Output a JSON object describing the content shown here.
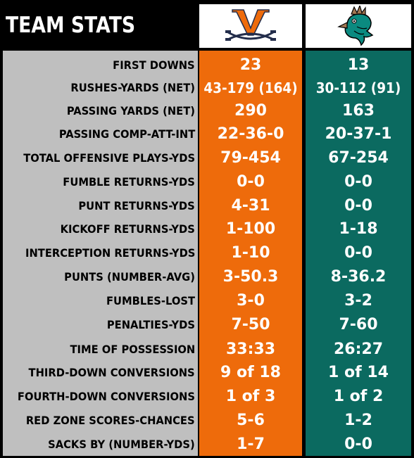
{
  "title": "TEAM STATS",
  "teams": [
    {
      "logo": "virginia-v-sabres-logo",
      "color": "#ee6b0b"
    },
    {
      "logo": "coastal-chanticleer-logo",
      "color": "#0b6a60"
    }
  ],
  "rows": [
    {
      "label": "FIRST DOWNS",
      "home": "23",
      "away": "13"
    },
    {
      "label": "RUSHES-YARDS (NET)",
      "home": "43-179 (164)",
      "away": "30-112 (91)"
    },
    {
      "label": "PASSING YARDS (NET)",
      "home": "290",
      "away": "163"
    },
    {
      "label": "PASSING COMP-ATT-INT",
      "home": "22-36-0",
      "away": "20-37-1"
    },
    {
      "label": "TOTAL OFFENSIVE PLAYS-YDS",
      "home": "79-454",
      "away": "67-254"
    },
    {
      "label": "FUMBLE RETURNS-YDS",
      "home": "0-0",
      "away": "0-0"
    },
    {
      "label": "PUNT RETURNS-YDS",
      "home": "4-31",
      "away": "0-0"
    },
    {
      "label": "KICKOFF RETURNS-YDS",
      "home": "1-100",
      "away": "1-18"
    },
    {
      "label": "INTERCEPTION RETURNS-YDS",
      "home": "1-10",
      "away": "0-0"
    },
    {
      "label": "PUNTS (NUMBER-AVG)",
      "home": "3-50.3",
      "away": "8-36.2"
    },
    {
      "label": "FUMBLES-LOST",
      "home": "3-0",
      "away": "3-2"
    },
    {
      "label": "PENALTIES-YDS",
      "home": "7-50",
      "away": "7-60"
    },
    {
      "label": "TIME OF POSSESSION",
      "home": "33:33",
      "away": "26:27"
    },
    {
      "label": "THIRD-DOWN CONVERSIONS",
      "home": "9 of 18",
      "away": "1 of 14"
    },
    {
      "label": "FOURTH-DOWN CONVERSIONS",
      "home": "1 of 3",
      "away": "1 of 2"
    },
    {
      "label": "RED ZONE SCORES-CHANCES",
      "home": "5-6",
      "away": "1-2"
    },
    {
      "label": "SACKS BY (NUMBER-YDS)",
      "home": "1-7",
      "away": "0-0"
    }
  ]
}
